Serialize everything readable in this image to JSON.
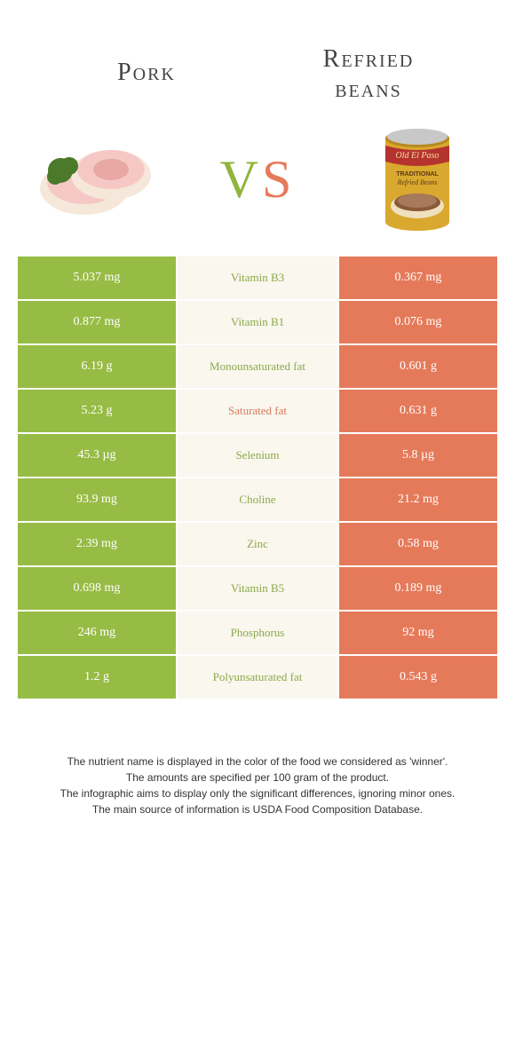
{
  "titles": {
    "left": "Pork",
    "right": "Refried\nbeans"
  },
  "vs": {
    "v": "V",
    "s": "S"
  },
  "colors": {
    "left_bg": "#97bc45",
    "right_bg": "#e57a5a",
    "mid_bg": "#f9f7ee",
    "winner_left_text": "#8ca84a",
    "winner_right_text": "#d87a5e"
  },
  "rows": [
    {
      "left": "5.037 mg",
      "label": "Vitamin B3",
      "right": "0.367 mg",
      "winner": "left"
    },
    {
      "left": "0.877 mg",
      "label": "Vitamin B1",
      "right": "0.076 mg",
      "winner": "left"
    },
    {
      "left": "6.19 g",
      "label": "Monounsaturated fat",
      "right": "0.601 g",
      "winner": "left"
    },
    {
      "left": "5.23 g",
      "label": "Saturated fat",
      "right": "0.631 g",
      "winner": "right"
    },
    {
      "left": "45.3 µg",
      "label": "Selenium",
      "right": "5.8 µg",
      "winner": "left"
    },
    {
      "left": "93.9 mg",
      "label": "Choline",
      "right": "21.2 mg",
      "winner": "left"
    },
    {
      "left": "2.39 mg",
      "label": "Zinc",
      "right": "0.58 mg",
      "winner": "left"
    },
    {
      "left": "0.698 mg",
      "label": "Vitamin B5",
      "right": "0.189 mg",
      "winner": "left"
    },
    {
      "left": "246 mg",
      "label": "Phosphorus",
      "right": "92 mg",
      "winner": "left"
    },
    {
      "left": "1.2 g",
      "label": "Polyunsaturated fat",
      "right": "0.543 g",
      "winner": "left"
    }
  ],
  "footer": {
    "line1": "The nutrient name is displayed in the color of the food we considered as 'winner'.",
    "line2": "The amounts are specified per 100 gram of the product.",
    "line3": "The infographic aims to display only the significant differences, ignoring minor ones.",
    "line4": "The main source of information is USDA Food Composition Database."
  },
  "can_text": {
    "brand": "Old El Paso",
    "line1": "TRADITIONAL",
    "line2": "Refried Beans"
  }
}
